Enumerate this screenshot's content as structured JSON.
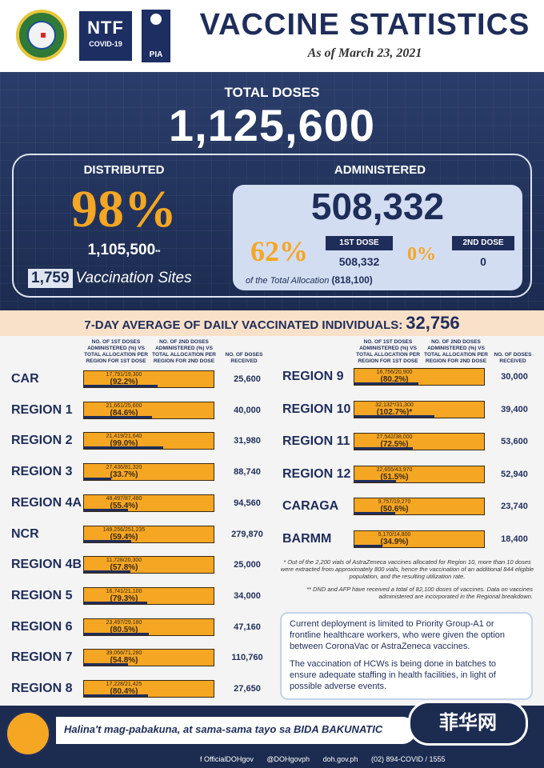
{
  "header": {
    "title": "VACCINE STATISTICS",
    "as_of": "As of March 23, 2021",
    "ntf_logo": {
      "text": "NTF",
      "sub": "COVID-19"
    },
    "pia_logo": "PIA"
  },
  "summary": {
    "total_doses_label": "TOTAL DOSES",
    "total_doses": "1,125,600",
    "distributed_label": "DISTRIBUTED",
    "distributed_pct": "98%",
    "distributed_doses": "1,105,500",
    "distributed_suffix": "**",
    "sites_count": "1,759",
    "sites_label": "Vaccination Sites",
    "administered_label": "ADMINISTERED",
    "administered_total": "508,332",
    "first_dose_pct": "62%",
    "first_dose_label": "1ST DOSE",
    "first_dose_value": "508,332",
    "second_dose_pct": "0%",
    "second_dose_label": "2ND DOSE",
    "second_dose_value": "0",
    "allocation_note": "of the Total Allocation",
    "allocation_total": "(818,100)"
  },
  "average": {
    "label": "7-DAY AVERAGE OF DAILY VACCINATED INDIVIDUALS:",
    "value": "32,756"
  },
  "table_headers": {
    "first": "NO. OF 1ST DOSES ADMINISTERED (%) VS TOTAL ALLOCATION PER REGION FOR 1ST DOSE",
    "second": "NO. OF 2ND DOSES ADMINISTERED (%) VS TOTAL ALLOCATION PER REGION FOR 2ND DOSE",
    "received": "NO. OF DOSES RECEIVED"
  },
  "regions_left": [
    {
      "name": "CAR",
      "ratio": "17,791/19,300",
      "pct": "(92.2%)",
      "fraction": 0.922,
      "received": "25,600"
    },
    {
      "name": "REGION 1",
      "ratio": "21,661/25,600",
      "pct": "(84.6%)",
      "fraction": 0.846,
      "received": "40,000"
    },
    {
      "name": "REGION 2",
      "ratio": "21,419/21,640",
      "pct": "(99.0%)",
      "fraction": 0.99,
      "received": "31,980"
    },
    {
      "name": "REGION 3",
      "ratio": "27,436/81,320",
      "pct": "(33.7%)",
      "fraction": 0.337,
      "received": "88,740"
    },
    {
      "name": "REGION 4A",
      "ratio": "48,497/87,480",
      "pct": "(55.4%)",
      "fraction": 0.554,
      "received": "94,560"
    },
    {
      "name": "NCR",
      "ratio": "149,256/251,235",
      "pct": "(59.4%)",
      "fraction": 0.594,
      "received": "279,870"
    },
    {
      "name": "REGION 4B",
      "ratio": "11,728/20,300",
      "pct": "(57.8%)",
      "fraction": 0.578,
      "received": "25,000"
    },
    {
      "name": "REGION 5",
      "ratio": "16,741/21,100",
      "pct": "(79.3%)",
      "fraction": 0.793,
      "received": "34,000"
    },
    {
      "name": "REGION 6",
      "ratio": "23,497/29,180",
      "pct": "(80.5%)",
      "fraction": 0.805,
      "received": "47,160"
    },
    {
      "name": "REGION 7",
      "ratio": "39,066/71,280",
      "pct": "(54.8%)",
      "fraction": 0.548,
      "received": "110,760"
    },
    {
      "name": "REGION 8",
      "ratio": "17,228/21,425",
      "pct": "(80.4%)",
      "fraction": 0.804,
      "received": "27,650"
    }
  ],
  "regions_right": [
    {
      "name": "REGION 9",
      "ratio": "16,756/20,900",
      "pct": "(80.2%)",
      "fraction": 0.802,
      "received": "30,000"
    },
    {
      "name": "REGION 10",
      "ratio": "32,132*/31,300",
      "pct": "(102.7%)*",
      "fraction": 1.0,
      "received": "39,400"
    },
    {
      "name": "REGION 11",
      "ratio": "27,542/38,000",
      "pct": "(72.5%)",
      "fraction": 0.725,
      "received": "53,600"
    },
    {
      "name": "REGION 12",
      "ratio": "22,655/43,970",
      "pct": "(51.5%)",
      "fraction": 0.515,
      "received": "52,940"
    },
    {
      "name": "CARAGA",
      "ratio": "9,757/19,270",
      "pct": "(50.6%)",
      "fraction": 0.506,
      "received": "23,740"
    },
    {
      "name": "BARMM",
      "ratio": "5,170/14,800",
      "pct": "(34.9%)",
      "fraction": 0.349,
      "received": "18,400"
    }
  ],
  "footnotes": {
    "region10": "* Out of the 2,200 vials of AstraZeneca vaccines allocated for Region 10, more than 10 doses were extracted from approximately 800 vials, hence the vaccination of an additional 844 eligible population, and the resulting utilization rate.",
    "dnd_afp": "** DND and AFP have received a total of 82,100 doses of vaccines. Data on vaccines administered are incorporated in the Regional breakdown."
  },
  "info": {
    "p1": "Current deployment is limited to Priority Group-A1 or frontline healthcare workers, who were given the option between CoronaVac or AstraZeneca vaccines.",
    "p2": "The vaccination of HCWs is being done in batches to ensure adequate staffing in health facilities, in light of possible adverse events."
  },
  "footer": {
    "slogan": "Halina't mag-pabakuna, at sama-sama tayo sa BIDA BAKUNATIC",
    "watermark": "菲华网",
    "facebook": "f OfficialDOHgov",
    "twitter": "@DOHgovph",
    "website": "doh.gov.ph",
    "phone": "(02) 894-COVID / 1555"
  },
  "colors": {
    "navy": "#1f2d5a",
    "orange": "#f5a623",
    "light_blue": "#d3ddf1",
    "peach": "#f9e0c8"
  }
}
